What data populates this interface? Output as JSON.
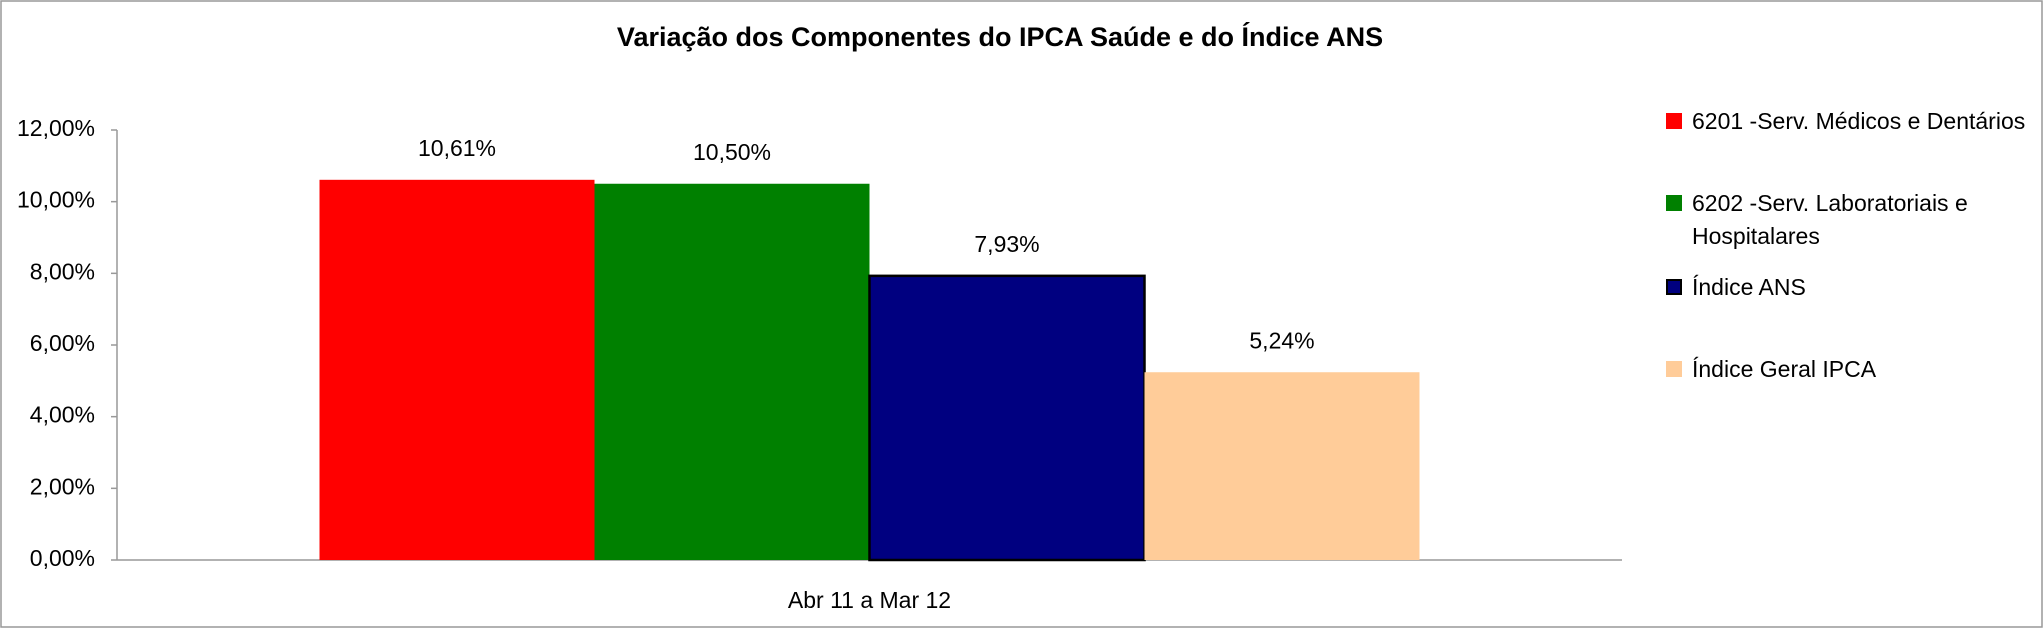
{
  "chart_data": {
    "type": "bar",
    "title": "Variação dos Componentes do IPCA Saúde e do Índice ANS",
    "categories": [
      "Abr 11 a Mar 12"
    ],
    "series": [
      {
        "name": "6201 -Serv. Médicos e Dentários",
        "color": "#ff0000",
        "values": [
          10.61
        ],
        "value_labels": [
          "10,61%"
        ]
      },
      {
        "name": "6202 -Serv. Laboratoriais e Hospitalares",
        "color": "#008000",
        "values": [
          10.5
        ],
        "value_labels": [
          "10,50%"
        ]
      },
      {
        "name": "Índice ANS",
        "color": "#000080",
        "edgecolor": "#000000",
        "values": [
          7.93
        ],
        "value_labels": [
          "7,93%"
        ]
      },
      {
        "name": "Índice Geral IPCA",
        "color": "#ffcc99",
        "values": [
          5.24
        ],
        "value_labels": [
          "5,24%"
        ]
      }
    ],
    "ylim": [
      0,
      12
    ],
    "yticks": [
      {
        "value": 0,
        "label": "0,00%"
      },
      {
        "value": 2,
        "label": "2,00%"
      },
      {
        "value": 4,
        "label": "4,00%"
      },
      {
        "value": 6,
        "label": "6,00%"
      },
      {
        "value": 8,
        "label": "8,00%"
      },
      {
        "value": 10,
        "label": "10,00%"
      },
      {
        "value": 12,
        "label": "12,00%"
      }
    ],
    "grid": false,
    "legend": "right"
  }
}
